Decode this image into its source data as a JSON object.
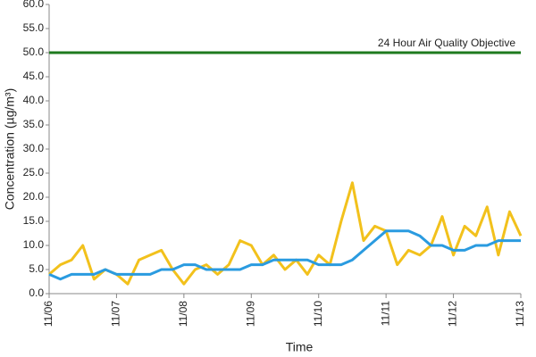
{
  "chart_data": {
    "type": "line",
    "ylabel": "Concentration (µg/m³)",
    "xlabel": "Time",
    "xlim": [
      0,
      7
    ],
    "xticks": [
      {
        "value": 0,
        "label": "11/06"
      },
      {
        "value": 1,
        "label": "11/07"
      },
      {
        "value": 2,
        "label": "11/08"
      },
      {
        "value": 3,
        "label": "11/09"
      },
      {
        "value": 4,
        "label": "11/10"
      },
      {
        "value": 5,
        "label": "11/11"
      },
      {
        "value": 6,
        "label": "11/12"
      },
      {
        "value": 7,
        "label": "11/13"
      }
    ],
    "ylim": [
      0,
      60
    ],
    "yticks": [
      {
        "value": 0,
        "label": "0.0"
      },
      {
        "value": 5,
        "label": "5.0"
      },
      {
        "value": 10,
        "label": "10.0"
      },
      {
        "value": 15,
        "label": "15.0"
      },
      {
        "value": 20,
        "label": "20.0"
      },
      {
        "value": 25,
        "label": "25.0"
      },
      {
        "value": 30,
        "label": "30.0"
      },
      {
        "value": 35,
        "label": "35.0"
      },
      {
        "value": 40,
        "label": "40.0"
      },
      {
        "value": 45,
        "label": "45.0"
      },
      {
        "value": 50,
        "label": "50.0"
      },
      {
        "value": 55,
        "label": "55.0"
      },
      {
        "value": 60,
        "label": "60.0"
      }
    ],
    "x": [
      0,
      0.1667,
      0.3333,
      0.5,
      0.6667,
      0.8333,
      1,
      1.1667,
      1.3333,
      1.5,
      1.6667,
      1.8333,
      2,
      2.1667,
      2.3333,
      2.5,
      2.6667,
      2.8333,
      3,
      3.1667,
      3.3333,
      3.5,
      3.6667,
      3.8333,
      4,
      4.1667,
      4.3333,
      4.5,
      4.6667,
      4.8333,
      5,
      5.1667,
      5.3333,
      5.5,
      5.6667,
      5.8333,
      6,
      6.1667,
      6.3333,
      6.5,
      6.6667,
      6.8333,
      7
    ],
    "series": [
      {
        "color": "#f2c11c",
        "values": [
          4,
          6,
          7,
          10,
          3,
          5,
          4,
          2,
          7,
          8,
          9,
          5,
          2,
          5,
          6,
          4,
          6,
          11,
          10,
          6,
          8,
          5,
          7,
          4,
          8,
          6,
          15,
          23,
          11,
          14,
          13,
          6,
          9,
          8,
          10,
          16,
          8,
          14,
          12,
          18,
          8,
          17,
          12
        ]
      },
      {
        "color": "#2a9be0",
        "values": [
          4,
          3,
          4,
          4,
          4,
          5,
          4,
          4,
          4,
          4,
          5,
          5,
          6,
          6,
          5,
          5,
          5,
          5,
          6,
          6,
          7,
          7,
          7,
          7,
          6,
          6,
          6,
          7,
          9,
          11,
          13,
          13,
          13,
          12,
          10,
          10,
          9,
          9,
          10,
          10,
          11,
          11,
          11
        ]
      }
    ],
    "objective": {
      "label": "24 Hour Air Quality Objective",
      "value": 50,
      "color": "#1e7a1e"
    }
  }
}
